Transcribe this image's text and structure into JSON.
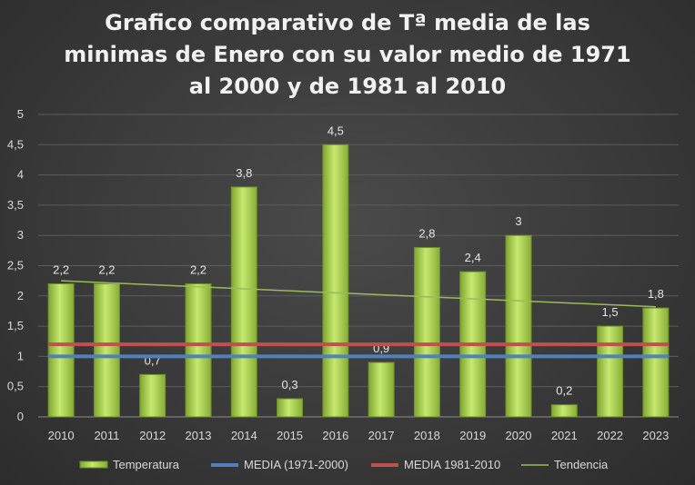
{
  "chart_data": {
    "type": "bar",
    "title_lines": [
      "Grafico comparativo de Tª media de las",
      "minimas de Enero con su valor medio de 1971",
      "al 2000 y de 1981 al 2010"
    ],
    "categories": [
      "2010",
      "2011",
      "2012",
      "2013",
      "2014",
      "2015",
      "2016",
      "2017",
      "2018",
      "2019",
      "2020",
      "2021",
      "2022",
      "2023"
    ],
    "series": [
      {
        "name": "Temperatura",
        "kind": "bar",
        "color": "#a8d14f",
        "values": [
          2.2,
          2.2,
          0.7,
          2.2,
          3.8,
          0.3,
          4.5,
          0.9,
          2.8,
          2.4,
          3,
          0.2,
          1.5,
          1.8
        ],
        "labels": [
          "2,2",
          "2,2",
          "0,7",
          "2,2",
          "3,8",
          "0,3",
          "4,5",
          "0,9",
          "2,8",
          "2,4",
          "3",
          "0,2",
          "1,5",
          "1,8"
        ]
      },
      {
        "name": "MEDIA (1971-2000)",
        "kind": "line",
        "color": "#4f81bd",
        "value": 1.0
      },
      {
        "name": "MEDIA 1981-2010",
        "kind": "line",
        "color": "#c0504d",
        "value": 1.2
      },
      {
        "name": "Tendencia",
        "kind": "trend",
        "color": "#9bbb59",
        "start": 2.25,
        "end": 1.82
      }
    ],
    "ylim": [
      0,
      5
    ],
    "yticks": [
      0,
      0.5,
      1,
      1.5,
      2,
      2.5,
      3,
      3.5,
      4,
      4.5,
      5
    ],
    "ytick_labels": [
      "0",
      "0,5",
      "1",
      "1,5",
      "2",
      "2,5",
      "3",
      "3,5",
      "4",
      "4,5",
      "5"
    ],
    "xlabel": "",
    "ylabel": "",
    "grid": true,
    "legend": "bottom"
  }
}
